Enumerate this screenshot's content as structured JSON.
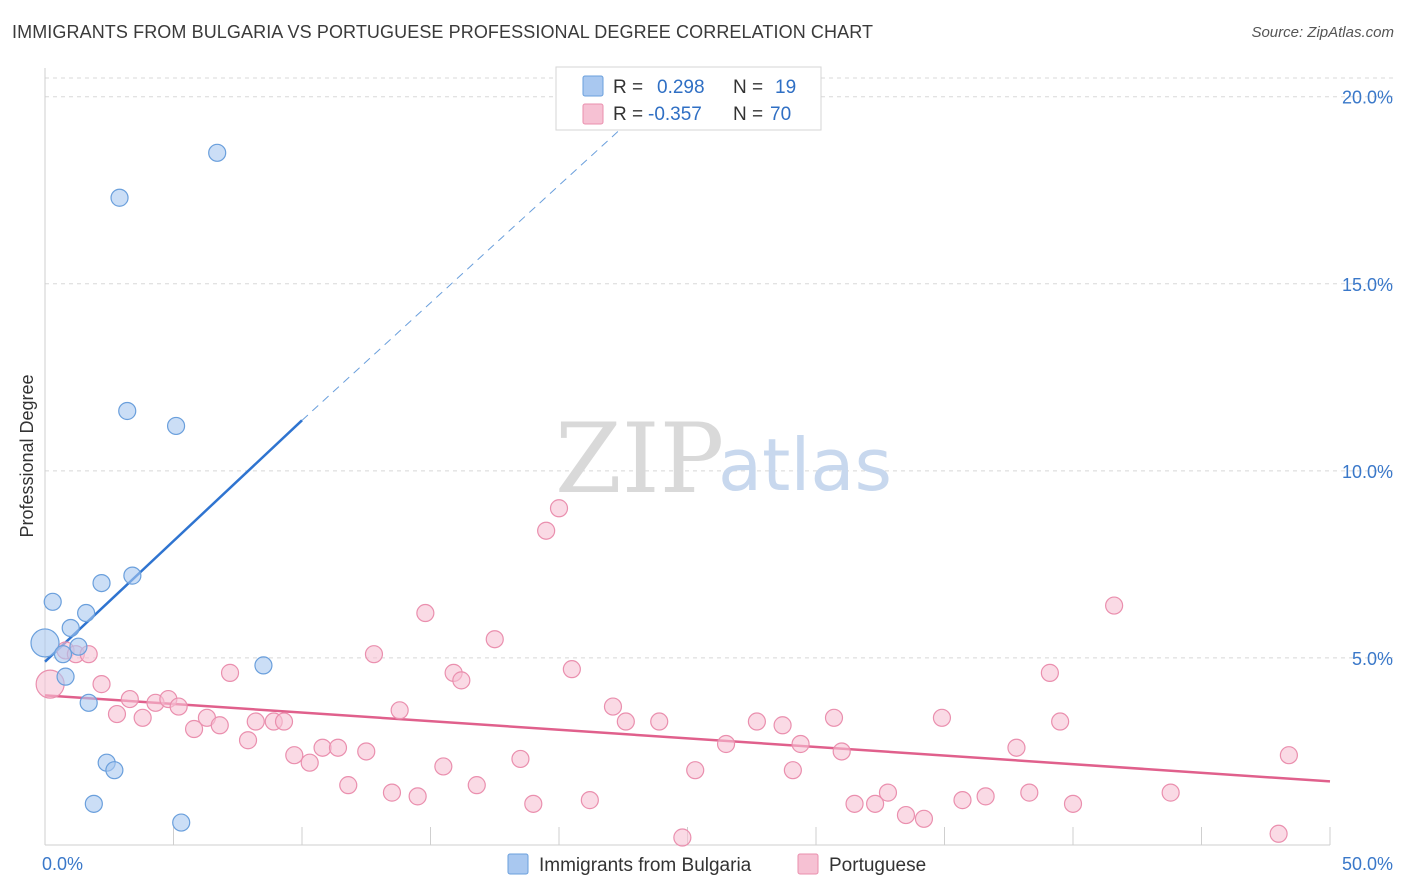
{
  "title": "IMMIGRANTS FROM BULGARIA VS PORTUGUESE PROFESSIONAL DEGREE CORRELATION CHART",
  "source": "Source: ZipAtlas.com",
  "watermark": {
    "zip": "ZIP",
    "atlas": "atlas"
  },
  "colors": {
    "blue_fill": "#a9c8f0",
    "blue_stroke": "#6a9fdc",
    "blue_line": "#2f74d0",
    "pink_fill": "#f6c1d3",
    "pink_stroke": "#ea8fae",
    "pink_line": "#e0608c",
    "grid": "#d8d8d8",
    "axis_text": "#3a78c9"
  },
  "legend_box": {
    "rows": [
      {
        "r_label": "R =",
        "r_value": "0.298",
        "n_label": "N =",
        "n_value": "19"
      },
      {
        "r_label": "R =",
        "r_value": "-0.357",
        "n_label": "N =",
        "n_value": "70"
      }
    ]
  },
  "chart_data": {
    "type": "scatter",
    "title": "IMMIGRANTS FROM BULGARIA VS PORTUGUESE PROFESSIONAL DEGREE CORRELATION CHART",
    "xlabel": "",
    "ylabel": "Professional Degree",
    "xlim": [
      0,
      50
    ],
    "ylim": [
      0,
      20.5
    ],
    "x_tick_labels": [
      "0.0%",
      "50.0%"
    ],
    "y_ticks": [
      5,
      10,
      15,
      20
    ],
    "y_tick_labels": [
      "5.0%",
      "10.0%",
      "15.0%",
      "20.0%"
    ],
    "grid": true,
    "legend_position": "bottom",
    "series": [
      {
        "name": "Immigrants from Bulgaria",
        "R": 0.298,
        "N": 19,
        "points": [
          [
            0.0,
            5.4
          ],
          [
            0.3,
            6.5
          ],
          [
            0.7,
            5.1
          ],
          [
            0.8,
            4.5
          ],
          [
            1.0,
            5.8
          ],
          [
            1.3,
            5.3
          ],
          [
            1.6,
            6.2
          ],
          [
            1.7,
            3.8
          ],
          [
            1.9,
            1.1
          ],
          [
            2.2,
            7.0
          ],
          [
            2.4,
            2.2
          ],
          [
            2.7,
            2.0
          ],
          [
            2.9,
            17.3
          ],
          [
            3.2,
            11.6
          ],
          [
            3.4,
            7.2
          ],
          [
            5.1,
            11.2
          ],
          [
            5.3,
            0.6
          ],
          [
            6.7,
            18.5
          ],
          [
            8.5,
            4.8
          ]
        ],
        "trend": {
          "x": [
            0.0,
            10.0
          ],
          "y": [
            4.9,
            11.35
          ]
        },
        "trend_extension": {
          "x": [
            10.0,
            22.5
          ],
          "y": [
            11.35,
            19.2
          ]
        }
      },
      {
        "name": "Portuguese",
        "R": -0.357,
        "N": 70,
        "points": [
          [
            0.2,
            4.3
          ],
          [
            0.8,
            5.2
          ],
          [
            1.2,
            5.1
          ],
          [
            1.7,
            5.1
          ],
          [
            2.2,
            4.3
          ],
          [
            2.8,
            3.5
          ],
          [
            3.3,
            3.9
          ],
          [
            3.8,
            3.4
          ],
          [
            4.3,
            3.8
          ],
          [
            4.8,
            3.9
          ],
          [
            5.2,
            3.7
          ],
          [
            5.8,
            3.1
          ],
          [
            6.3,
            3.4
          ],
          [
            6.8,
            3.2
          ],
          [
            7.2,
            4.6
          ],
          [
            7.9,
            2.8
          ],
          [
            8.2,
            3.3
          ],
          [
            8.9,
            3.3
          ],
          [
            9.3,
            3.3
          ],
          [
            9.7,
            2.4
          ],
          [
            10.3,
            2.2
          ],
          [
            10.8,
            2.6
          ],
          [
            11.4,
            2.6
          ],
          [
            11.8,
            1.6
          ],
          [
            12.5,
            2.5
          ],
          [
            12.8,
            5.1
          ],
          [
            13.5,
            1.4
          ],
          [
            13.8,
            3.6
          ],
          [
            14.5,
            1.3
          ],
          [
            14.8,
            6.2
          ],
          [
            15.5,
            2.1
          ],
          [
            15.9,
            4.6
          ],
          [
            16.2,
            4.4
          ],
          [
            16.8,
            1.6
          ],
          [
            17.5,
            5.5
          ],
          [
            18.5,
            2.3
          ],
          [
            19.0,
            1.1
          ],
          [
            19.5,
            8.4
          ],
          [
            20.0,
            9.0
          ],
          [
            20.5,
            4.7
          ],
          [
            21.2,
            1.2
          ],
          [
            22.1,
            3.7
          ],
          [
            22.6,
            3.3
          ],
          [
            23.9,
            3.3
          ],
          [
            24.8,
            0.2
          ],
          [
            25.3,
            2.0
          ],
          [
            26.5,
            2.7
          ],
          [
            27.7,
            3.3
          ],
          [
            28.7,
            3.2
          ],
          [
            29.1,
            2.0
          ],
          [
            29.4,
            2.7
          ],
          [
            30.7,
            3.4
          ],
          [
            31.0,
            2.5
          ],
          [
            31.5,
            1.1
          ],
          [
            32.3,
            1.1
          ],
          [
            32.8,
            1.4
          ],
          [
            33.5,
            0.8
          ],
          [
            34.2,
            0.7
          ],
          [
            34.9,
            3.4
          ],
          [
            35.7,
            1.2
          ],
          [
            36.6,
            1.3
          ],
          [
            37.8,
            2.6
          ],
          [
            38.3,
            1.4
          ],
          [
            39.1,
            4.6
          ],
          [
            39.5,
            3.3
          ],
          [
            40.0,
            1.1
          ],
          [
            41.6,
            6.4
          ],
          [
            43.8,
            1.4
          ],
          [
            48.0,
            0.3
          ],
          [
            48.4,
            2.4
          ]
        ],
        "trend": {
          "x": [
            0.0,
            50.0
          ],
          "y": [
            4.0,
            1.7
          ]
        }
      }
    ]
  }
}
